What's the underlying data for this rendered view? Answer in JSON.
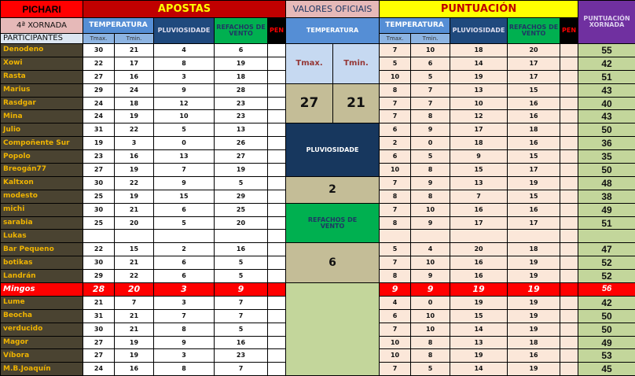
{
  "header": {
    "pichari": "PICHARI",
    "apostas": "APOSTAS",
    "valores": "VALORES OFICIAIS",
    "puntuacion": "PUNTUACIÓN",
    "puntuacion_xornada": "PUNTUACIÓN XORNADA",
    "xornada": "4ª XORNADA",
    "participantes": "PARTICIPANTES",
    "temperatura": "TEMPERATURA",
    "pluviosidade": "PLUVIOSIDADE",
    "refachos": "REFACHOS DE VENTO",
    "pen": "PEN",
    "tmax": "Tmax.",
    "tmin": "Tmin."
  },
  "official": {
    "tmax_label": "Tmax.",
    "tmin_label": "Tmin.",
    "tmax": "27",
    "tmin": "21",
    "pluviosidade_label": "PLUVIOSIDADE",
    "pluviosidade": "2",
    "refachos_label": "REFACHOS DE VENTO",
    "refachos": "6"
  },
  "colors": {
    "name_bg": "#4a4331",
    "name_text": "#f0b400",
    "highlight": "#ff0000",
    "total_bg": "#c3d69b",
    "points_bg": "#fbe7d9"
  },
  "highlight_row": "Mingos",
  "rows": [
    {
      "name": "Denodeno",
      "bet": [
        "30",
        "21",
        "4",
        "6",
        ""
      ],
      "pts": [
        "7",
        "10",
        "18",
        "20",
        ""
      ],
      "total": "55"
    },
    {
      "name": "Xowi",
      "bet": [
        "22",
        "17",
        "8",
        "19",
        ""
      ],
      "pts": [
        "5",
        "6",
        "14",
        "17",
        ""
      ],
      "total": "42"
    },
    {
      "name": "Rasta",
      "bet": [
        "27",
        "16",
        "3",
        "18",
        ""
      ],
      "pts": [
        "10",
        "5",
        "19",
        "17",
        ""
      ],
      "total": "51"
    },
    {
      "name": "Marius",
      "bet": [
        "29",
        "24",
        "9",
        "28",
        ""
      ],
      "pts": [
        "8",
        "7",
        "13",
        "15",
        ""
      ],
      "total": "43"
    },
    {
      "name": "Rasdgar",
      "bet": [
        "24",
        "18",
        "12",
        "23",
        ""
      ],
      "pts": [
        "7",
        "7",
        "10",
        "16",
        ""
      ],
      "total": "40"
    },
    {
      "name": "Mina",
      "bet": [
        "24",
        "19",
        "10",
        "23",
        ""
      ],
      "pts": [
        "7",
        "8",
        "12",
        "16",
        ""
      ],
      "total": "43"
    },
    {
      "name": "Julio",
      "bet": [
        "31",
        "22",
        "5",
        "13",
        ""
      ],
      "pts": [
        "6",
        "9",
        "17",
        "18",
        ""
      ],
      "total": "50"
    },
    {
      "name": "Compoñente Sur",
      "bet": [
        "19",
        "3",
        "0",
        "26",
        ""
      ],
      "pts": [
        "2",
        "0",
        "18",
        "16",
        ""
      ],
      "total": "36"
    },
    {
      "name": "Popolo",
      "bet": [
        "23",
        "16",
        "13",
        "27",
        ""
      ],
      "pts": [
        "6",
        "5",
        "9",
        "15",
        ""
      ],
      "total": "35"
    },
    {
      "name": "Breogán77",
      "bet": [
        "27",
        "19",
        "7",
        "19",
        ""
      ],
      "pts": [
        "10",
        "8",
        "15",
        "17",
        ""
      ],
      "total": "50"
    },
    {
      "name": "Kaltxon",
      "bet": [
        "30",
        "22",
        "9",
        "5",
        ""
      ],
      "pts": [
        "7",
        "9",
        "13",
        "19",
        ""
      ],
      "total": "48"
    },
    {
      "name": "modesto",
      "bet": [
        "25",
        "19",
        "15",
        "29",
        ""
      ],
      "pts": [
        "8",
        "8",
        "7",
        "15",
        ""
      ],
      "total": "38"
    },
    {
      "name": "michi",
      "bet": [
        "30",
        "21",
        "6",
        "25",
        ""
      ],
      "pts": [
        "7",
        "10",
        "16",
        "16",
        ""
      ],
      "total": "49"
    },
    {
      "name": "sarabia",
      "bet": [
        "25",
        "20",
        "5",
        "20",
        ""
      ],
      "pts": [
        "8",
        "9",
        "17",
        "17",
        ""
      ],
      "total": "51"
    },
    {
      "name": "Lukas",
      "bet": [
        "",
        "",
        "",
        "",
        ""
      ],
      "pts": [
        "",
        "",
        "",
        "",
        ""
      ],
      "total": ""
    },
    {
      "name": "Bar Pequeno",
      "bet": [
        "22",
        "15",
        "2",
        "16",
        ""
      ],
      "pts": [
        "5",
        "4",
        "20",
        "18",
        ""
      ],
      "total": "47"
    },
    {
      "name": "botikas",
      "bet": [
        "30",
        "21",
        "6",
        "5",
        ""
      ],
      "pts": [
        "7",
        "10",
        "16",
        "19",
        ""
      ],
      "total": "52"
    },
    {
      "name": "Landrán",
      "bet": [
        "29",
        "22",
        "6",
        "5",
        ""
      ],
      "pts": [
        "8",
        "9",
        "16",
        "19",
        ""
      ],
      "total": "52"
    },
    {
      "name": "Mingos",
      "bet": [
        "28",
        "20",
        "3",
        "9",
        ""
      ],
      "pts": [
        "9",
        "9",
        "19",
        "19",
        ""
      ],
      "total": "56"
    },
    {
      "name": "Lume",
      "bet": [
        "21",
        "7",
        "3",
        "7",
        ""
      ],
      "pts": [
        "4",
        "0",
        "19",
        "19",
        ""
      ],
      "total": "42"
    },
    {
      "name": "Beocha",
      "bet": [
        "31",
        "21",
        "7",
        "7",
        ""
      ],
      "pts": [
        "6",
        "10",
        "15",
        "19",
        ""
      ],
      "total": "50"
    },
    {
      "name": "verducido",
      "bet": [
        "30",
        "21",
        "8",
        "5",
        ""
      ],
      "pts": [
        "7",
        "10",
        "14",
        "19",
        ""
      ],
      "total": "50"
    },
    {
      "name": "Magor",
      "bet": [
        "27",
        "19",
        "9",
        "16",
        ""
      ],
      "pts": [
        "10",
        "8",
        "13",
        "18",
        ""
      ],
      "total": "49"
    },
    {
      "name": "Víbora",
      "bet": [
        "27",
        "19",
        "3",
        "23",
        ""
      ],
      "pts": [
        "10",
        "8",
        "19",
        "16",
        ""
      ],
      "total": "53"
    },
    {
      "name": "M.B.Joaquín",
      "bet": [
        "24",
        "16",
        "8",
        "7",
        ""
      ],
      "pts": [
        "7",
        "5",
        "14",
        "19",
        ""
      ],
      "total": "45"
    }
  ]
}
